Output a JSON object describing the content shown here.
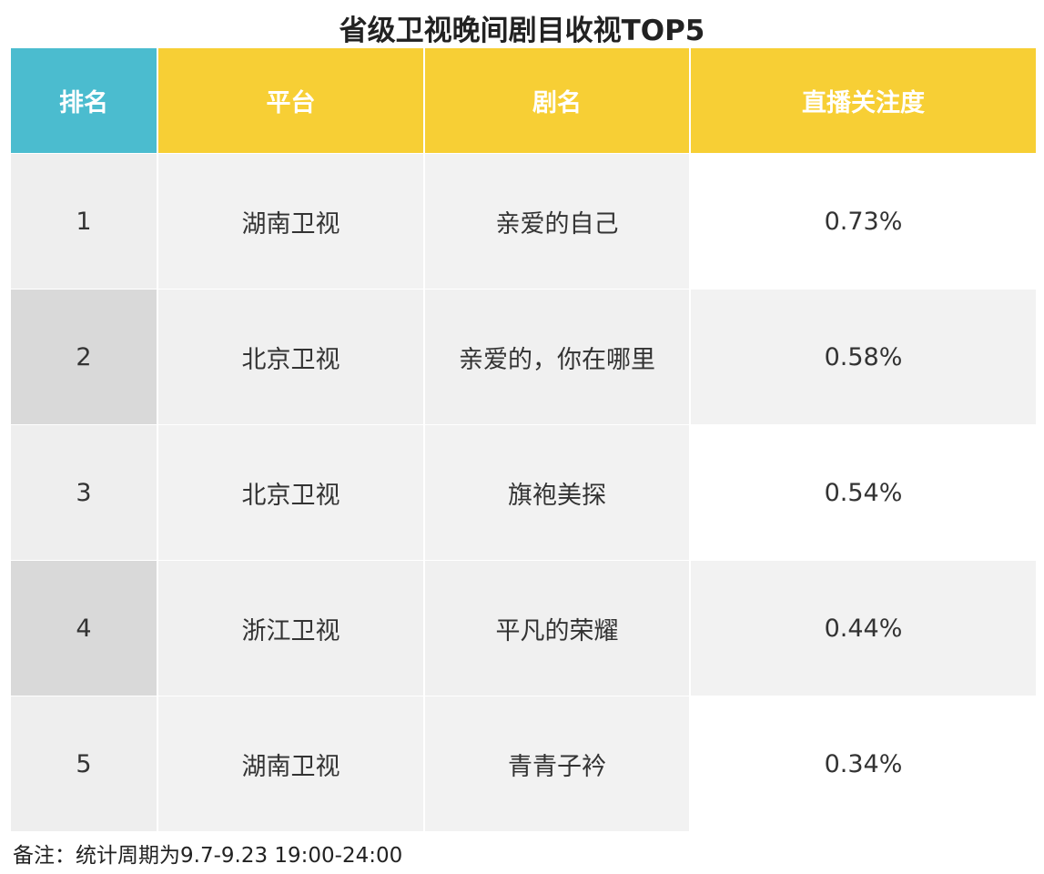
{
  "title": "省级卫视晚间剧目收视TOP5",
  "colors": {
    "rank_header_bg": "#4bbccf",
    "header_bg": "#f7cf35",
    "header_text": "#ffffff"
  },
  "table": {
    "headers": [
      "排名",
      "平台",
      "剧名",
      "直播关注度"
    ],
    "rows": [
      {
        "rank": "1",
        "platform": "湖南卫视",
        "drama": "亲爱的自己",
        "attention": "0.73%"
      },
      {
        "rank": "2",
        "platform": "北京卫视",
        "drama": "亲爱的，你在哪里",
        "attention": "0.58%"
      },
      {
        "rank": "3",
        "platform": "北京卫视",
        "drama": "旗袍美探",
        "attention": "0.54%"
      },
      {
        "rank": "4",
        "platform": "浙江卫视",
        "drama": "平凡的荣耀",
        "attention": "0.44%"
      },
      {
        "rank": "5",
        "platform": "湖南卫视",
        "drama": "青青子衿",
        "attention": "0.34%"
      }
    ]
  },
  "note": "备注：统计周期为9.7-9.23 19:00-24:00"
}
